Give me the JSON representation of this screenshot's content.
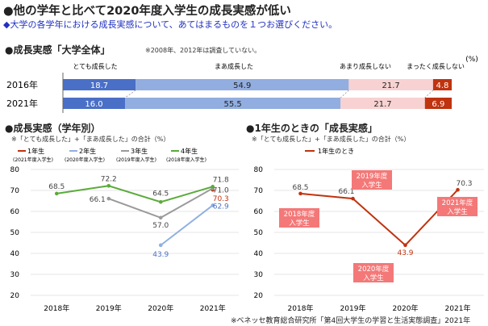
{
  "title": "●他の学年と比べて2020年度入学生の成長実感が低い",
  "question": "◆大学の各学年における成長実感について、あてはまるものを１つお選びください。",
  "source": "※ベネッセ教育総合研究所「第4回大学生の学習と生活実態調査」2021年",
  "colors": {
    "c1": "#4a6fc7",
    "c2": "#92aee0",
    "c3": "#f8d2d2",
    "c4": "#c0330f",
    "green": "#5aab3a",
    "gray": "#9a9a9a",
    "red": "#c0330f",
    "blue": "#8fb0e0"
  },
  "chart_data": [
    {
      "type": "bar",
      "title": "成長実感「大学全体」",
      "note": "※2008年、2012年は調査していない。",
      "unit": "(%)",
      "categories": [
        "2016年",
        "2021年"
      ],
      "series": [
        {
          "name": "とても成長した",
          "values": [
            18.7,
            16.0
          ],
          "labels": [
            "18.7",
            "16.0"
          ]
        },
        {
          "name": "まあ成長した",
          "values": [
            54.9,
            55.5
          ],
          "labels": [
            "54.9",
            "55.5"
          ]
        },
        {
          "name": "あまり成長しない",
          "values": [
            21.7,
            21.7
          ],
          "labels": [
            "21.7",
            "21.7"
          ]
        },
        {
          "name": "まったく成長しない",
          "values": [
            4.8,
            6.9
          ],
          "labels": [
            "4.8",
            "6.9"
          ]
        }
      ]
    },
    {
      "type": "line",
      "title": "●成長実感（学年別）",
      "note": "※「とても成長した」+「まあ成長した」の合計（%）",
      "categories": [
        "2018年",
        "2019年",
        "2020年",
        "2021年"
      ],
      "yticks": [
        "80",
        "70",
        "60",
        "50",
        "40",
        "30",
        "20"
      ],
      "ylim": [
        20,
        80
      ],
      "series": [
        {
          "name": "1年生",
          "sub": "(2021年度入学生)",
          "values": [
            null,
            null,
            null,
            70.3
          ],
          "labels": [
            "",
            "",
            "",
            "70.3"
          ]
        },
        {
          "name": "2年生",
          "sub": "(2020年度入学生)",
          "values": [
            null,
            null,
            43.9,
            62.9
          ],
          "labels": [
            "",
            "",
            "43.9",
            "62.9"
          ]
        },
        {
          "name": "3年生",
          "sub": "(2019年度入学生)",
          "values": [
            null,
            66.1,
            57.0,
            71.0
          ],
          "labels": [
            "",
            "66.1",
            "57.0",
            "71.0"
          ]
        },
        {
          "name": "4年生",
          "sub": "(2018年度入学生)",
          "values": [
            68.5,
            72.2,
            64.5,
            71.8
          ],
          "labels": [
            "68.5",
            "72.2",
            "64.5",
            "71.8"
          ]
        }
      ]
    },
    {
      "type": "line",
      "title": "●1年生のときの「成長実感」",
      "note": "※「とても成長した」+「まあ成長した」の合計（%）",
      "categories": [
        "2018年",
        "2019年",
        "2020年",
        "2021年"
      ],
      "yticks": [
        "80",
        "70",
        "60",
        "50",
        "40",
        "30",
        "20"
      ],
      "ylim": [
        20,
        80
      ],
      "series": [
        {
          "name": "1年生のとき",
          "values": [
            68.5,
            66.1,
            43.9,
            70.3
          ],
          "labels": [
            "68.5",
            "66.1",
            "43.9",
            "70.3"
          ]
        }
      ],
      "callouts": [
        [
          "2018年度",
          "入学生"
        ],
        [
          "2019年度",
          "入学生"
        ],
        [
          "2020年度",
          "入学生"
        ],
        [
          "2021年度",
          "入学生"
        ]
      ]
    }
  ]
}
